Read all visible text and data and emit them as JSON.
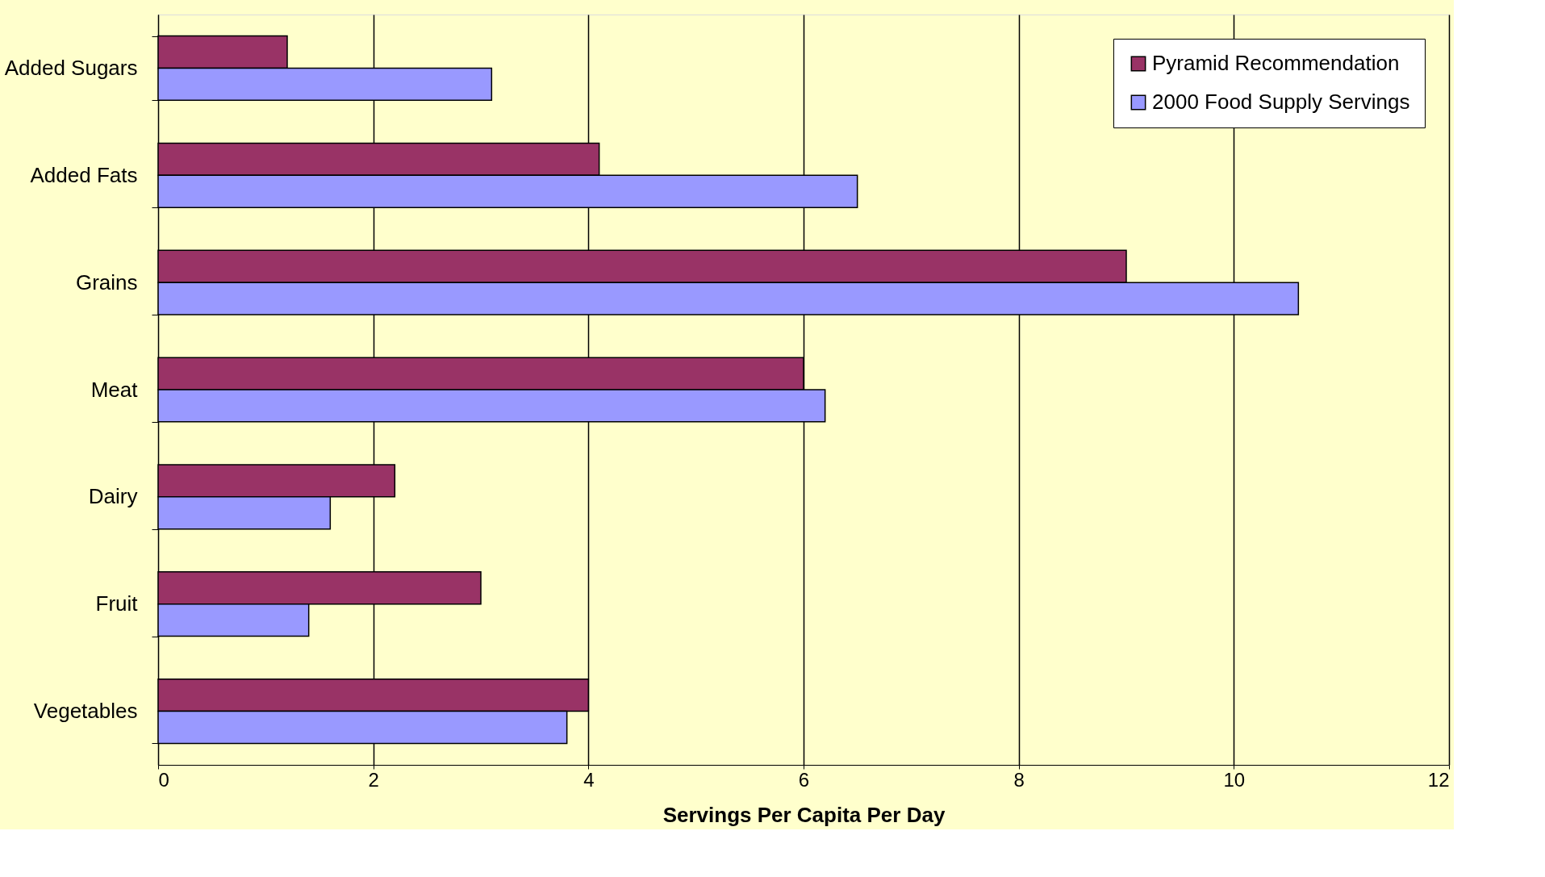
{
  "chart_data": {
    "type": "bar",
    "orientation": "horizontal",
    "xlabel": "Servings Per Capita Per Day",
    "categories": [
      "Added Sugars",
      "Added Fats",
      "Grains",
      "Meat",
      "Dairy",
      "Fruit",
      "Vegetables"
    ],
    "series": [
      {
        "name": "Pyramid Recommendation",
        "color": "#993366",
        "values": [
          1.2,
          4.1,
          9.0,
          6.0,
          2.2,
          3.0,
          4.0
        ]
      },
      {
        "name": "2000 Food Supply Servings",
        "color": "#9999ff",
        "values": [
          3.1,
          6.5,
          10.6,
          6.2,
          1.6,
          1.4,
          3.8
        ]
      }
    ],
    "xlim": [
      0,
      12
    ],
    "xticks": [
      0,
      2,
      4,
      6,
      8,
      10,
      12
    ],
    "grid": "x",
    "legend": "top right"
  }
}
